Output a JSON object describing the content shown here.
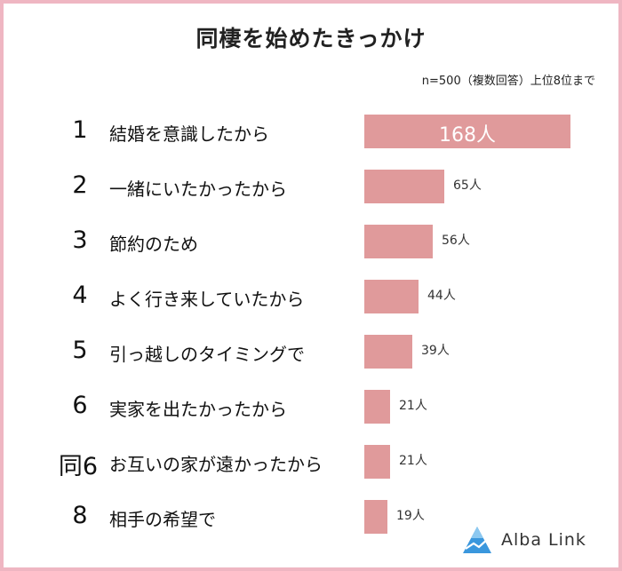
{
  "title": "同棲を始めたきっかけ",
  "note": "n=500（複数回答）上位8位まで",
  "logo": {
    "text": "Alba Link",
    "icon": "albalink-triangle-icon",
    "color": "#2b8fd8"
  },
  "bar_color": "#e09a9b",
  "frame_color": "#efb6c2",
  "chart_data": {
    "type": "bar",
    "orientation": "horizontal",
    "value_unit": "人",
    "categories": [
      "結婚を意識したから",
      "一緒にいたかったから",
      "節約のため",
      "よく行き来していたから",
      "引っ越しのタイミングで",
      "実家を出たかったから",
      "お互いの家が遠かったから",
      "相手の希望で"
    ],
    "ranks": [
      "1",
      "2",
      "3",
      "4",
      "5",
      "6",
      "同6",
      "8"
    ],
    "values": [
      168,
      65,
      56,
      44,
      39,
      21,
      21,
      19
    ],
    "value_labels": [
      "168人",
      "65人",
      "56人",
      "44人",
      "39人",
      "21人",
      "21人",
      "19人"
    ],
    "xlim": [
      0,
      168
    ],
    "grid": false,
    "legend": "none"
  }
}
